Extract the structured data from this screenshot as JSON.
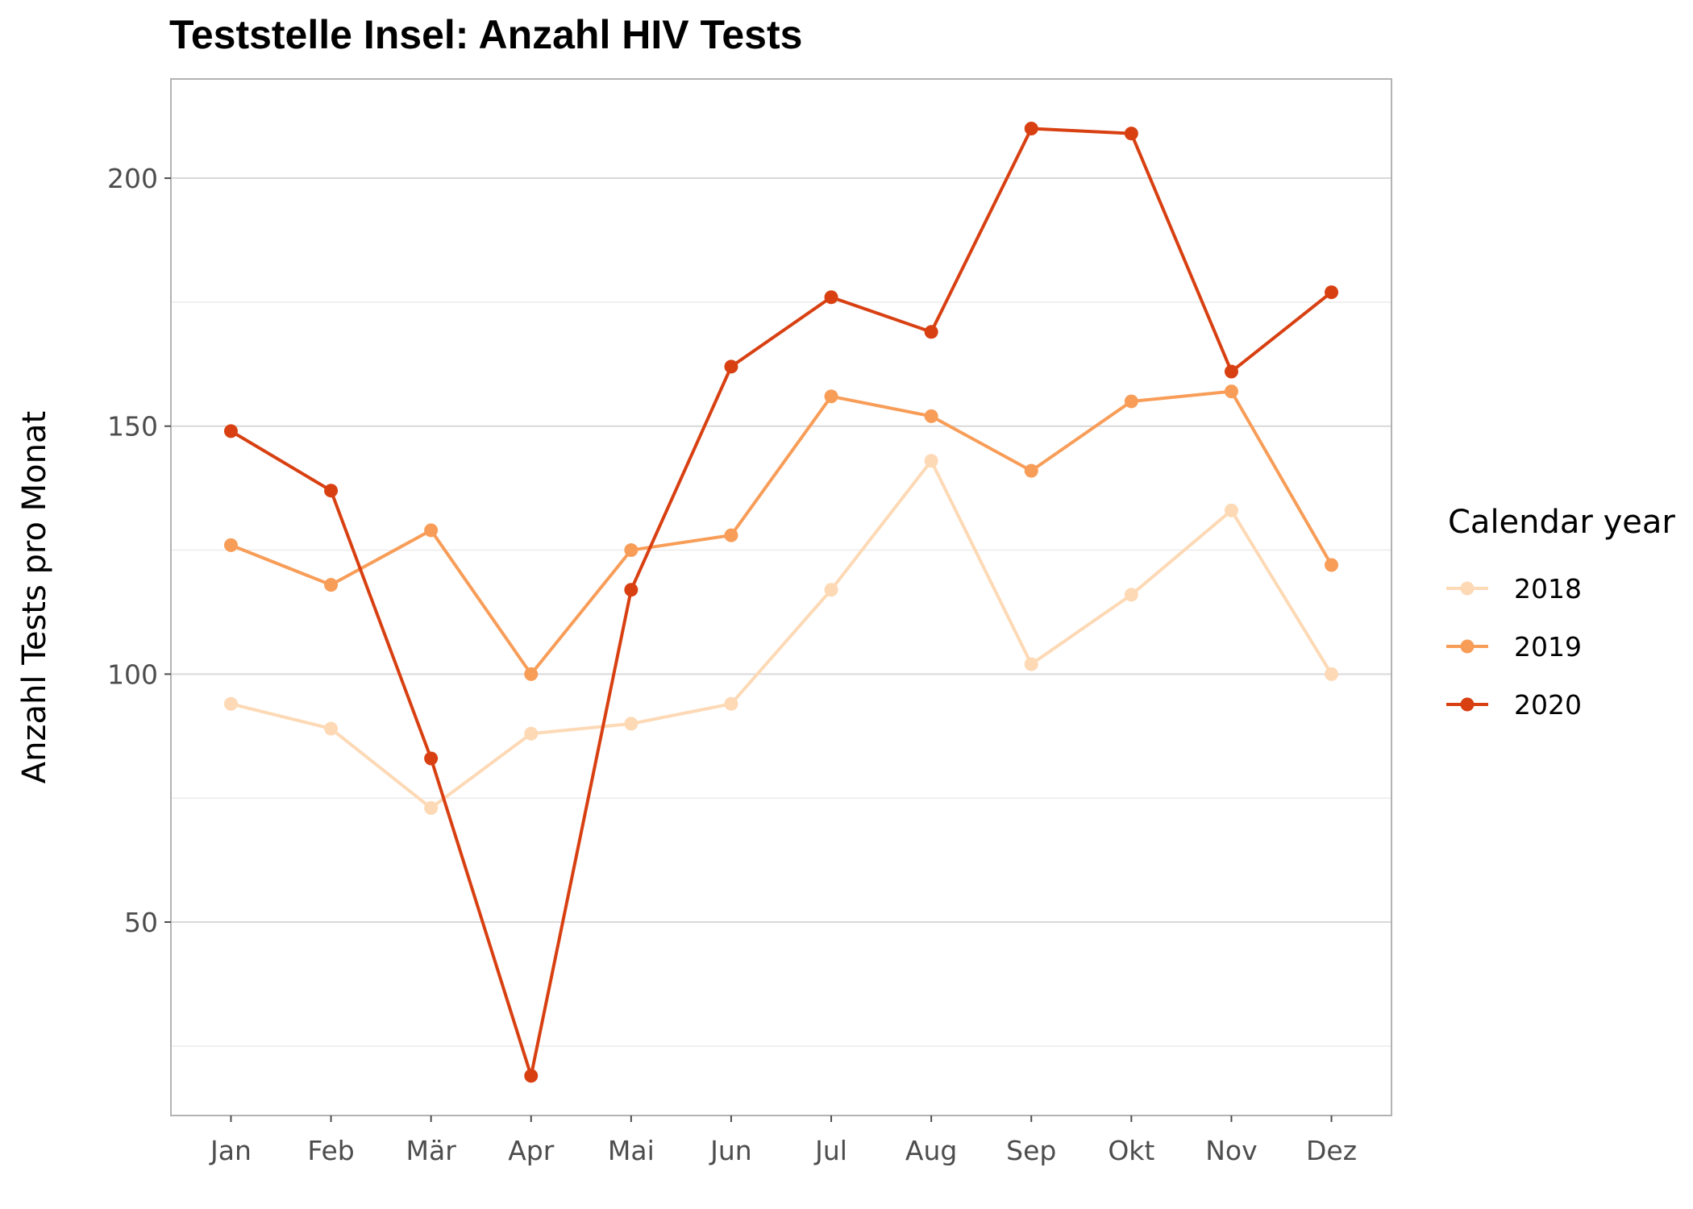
{
  "chart_data": {
    "type": "line",
    "title": "Teststelle Insel: Anzahl HIV Tests",
    "xlabel": "",
    "ylabel": "Anzahl Tests pro Monat",
    "categories": [
      "Jan",
      "Feb",
      "Mär",
      "Apr",
      "Mai",
      "Jun",
      "Jul",
      "Aug",
      "Sep",
      "Okt",
      "Nov",
      "Dez"
    ],
    "y_ticks": [
      50,
      100,
      150,
      200
    ],
    "ylim": [
      11,
      220
    ],
    "grid": true,
    "legend": {
      "title": "Calendar year",
      "position": "right"
    },
    "series": [
      {
        "name": "2018",
        "color": "#fdd9b5",
        "values": [
          94,
          89,
          73,
          88,
          90,
          94,
          117,
          143,
          102,
          116,
          133,
          100
        ]
      },
      {
        "name": "2019",
        "color": "#f89d58",
        "values": [
          126,
          118,
          129,
          100,
          125,
          128,
          156,
          152,
          141,
          155,
          157,
          122
        ]
      },
      {
        "name": "2020",
        "color": "#d84012",
        "values": [
          149,
          137,
          83,
          19,
          117,
          162,
          176,
          169,
          210,
          209,
          161,
          177
        ]
      }
    ]
  }
}
